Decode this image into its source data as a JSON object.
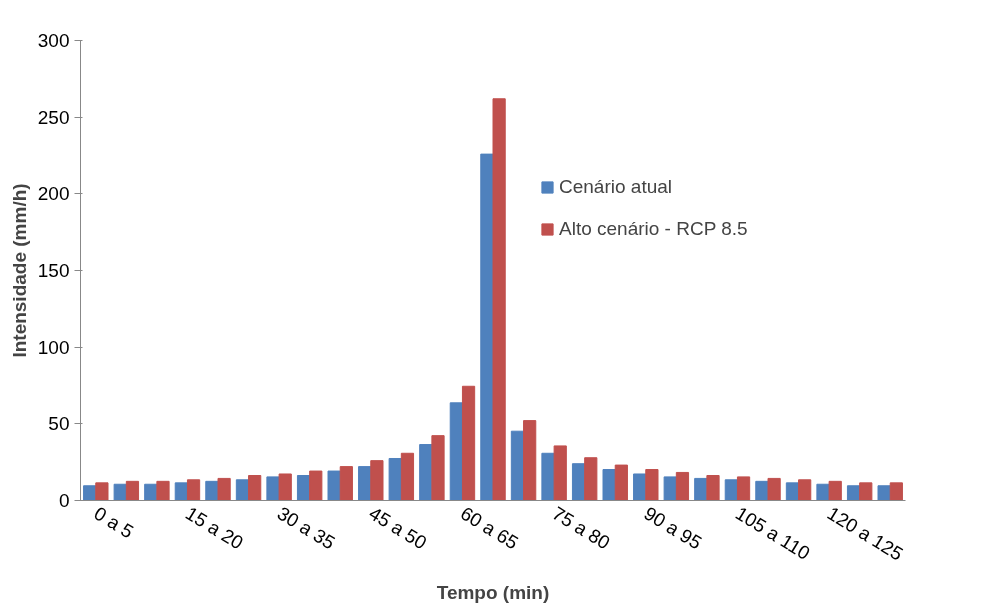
{
  "chart_data": {
    "type": "bar",
    "xlabel": "Tempo (min)",
    "ylabel": "Intensidade (mm/h)",
    "categories": [
      "0 a 5",
      null,
      null,
      "15 a 20",
      null,
      null,
      "30 a 35",
      null,
      null,
      "45 a 50",
      null,
      null,
      "60 a 65",
      null,
      null,
      "75 a 80",
      null,
      null,
      "90 a 95",
      null,
      null,
      "105 a 110",
      null,
      null,
      "120 a 125",
      null,
      null
    ],
    "series": [
      {
        "name": "Cenário atual",
        "color": "#4f81bd",
        "values": [
          9.6,
          10.6,
          10.6,
          11.5,
          12.5,
          13.5,
          15.4,
          16.3,
          19.2,
          22.1,
          27.4,
          36.5,
          63.7,
          225.9,
          45.2,
          30.8,
          24.0,
          20.2,
          17.3,
          15.4,
          14.4,
          13.5,
          12.5,
          11.5,
          10.6,
          9.6,
          9.6
        ]
      },
      {
        "name": "Alto cenário - RCP 8.5",
        "color": "#c0504d",
        "values": [
          11.5,
          12.5,
          12.5,
          13.5,
          14.4,
          16.3,
          17.3,
          19.2,
          22.1,
          26.0,
          30.8,
          42.3,
          74.5,
          262.0,
          52.1,
          35.6,
          27.9,
          23.1,
          20.2,
          18.3,
          16.3,
          15.4,
          14.4,
          13.5,
          12.5,
          11.5,
          11.5
        ]
      }
    ],
    "ylim": [
      0,
      300
    ],
    "yticks": [
      0,
      50,
      100,
      150,
      200,
      250,
      300
    ],
    "grid": false,
    "legend": "right"
  }
}
